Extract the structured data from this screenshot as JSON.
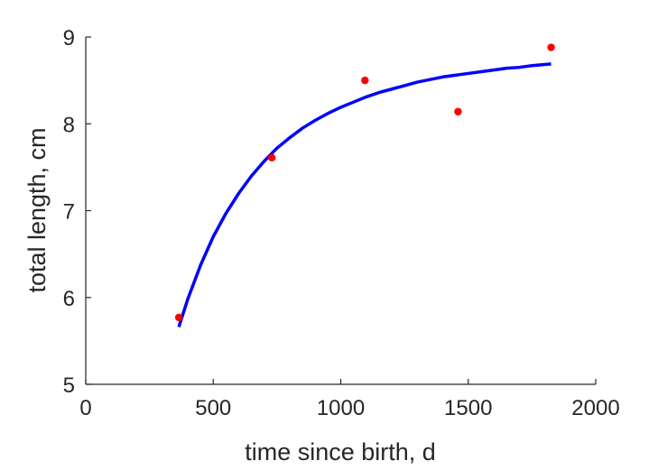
{
  "chart_data": {
    "type": "scatter",
    "title": "",
    "xlabel": "time since birth, d",
    "ylabel": "total length, cm",
    "xlim": [
      0,
      2000
    ],
    "ylim": [
      5,
      9
    ],
    "xticks": [
      0,
      500,
      1000,
      1500,
      2000
    ],
    "yticks": [
      5,
      6,
      7,
      8,
      9
    ],
    "grid": false,
    "legend": "none",
    "series": [
      {
        "type": "scatter",
        "color": "#ff0000",
        "x": [
          365,
          730,
          1095,
          1460,
          1825
        ],
        "y": [
          5.77,
          7.61,
          8.5,
          8.14,
          8.88
        ]
      },
      {
        "type": "line",
        "color": "#0000ff",
        "x": [
          365,
          400,
          450,
          500,
          550,
          600,
          650,
          700,
          750,
          800,
          850,
          900,
          950,
          1000,
          1050,
          1100,
          1150,
          1200,
          1250,
          1300,
          1350,
          1400,
          1450,
          1500,
          1550,
          1600,
          1650,
          1700,
          1750,
          1825
        ],
        "y": [
          5.66,
          5.98,
          6.37,
          6.7,
          6.97,
          7.2,
          7.4,
          7.57,
          7.72,
          7.84,
          7.95,
          8.04,
          8.12,
          8.19,
          8.25,
          8.31,
          8.36,
          8.4,
          8.44,
          8.48,
          8.51,
          8.54,
          8.56,
          8.58,
          8.6,
          8.62,
          8.64,
          8.65,
          8.67,
          8.69
        ]
      }
    ]
  }
}
